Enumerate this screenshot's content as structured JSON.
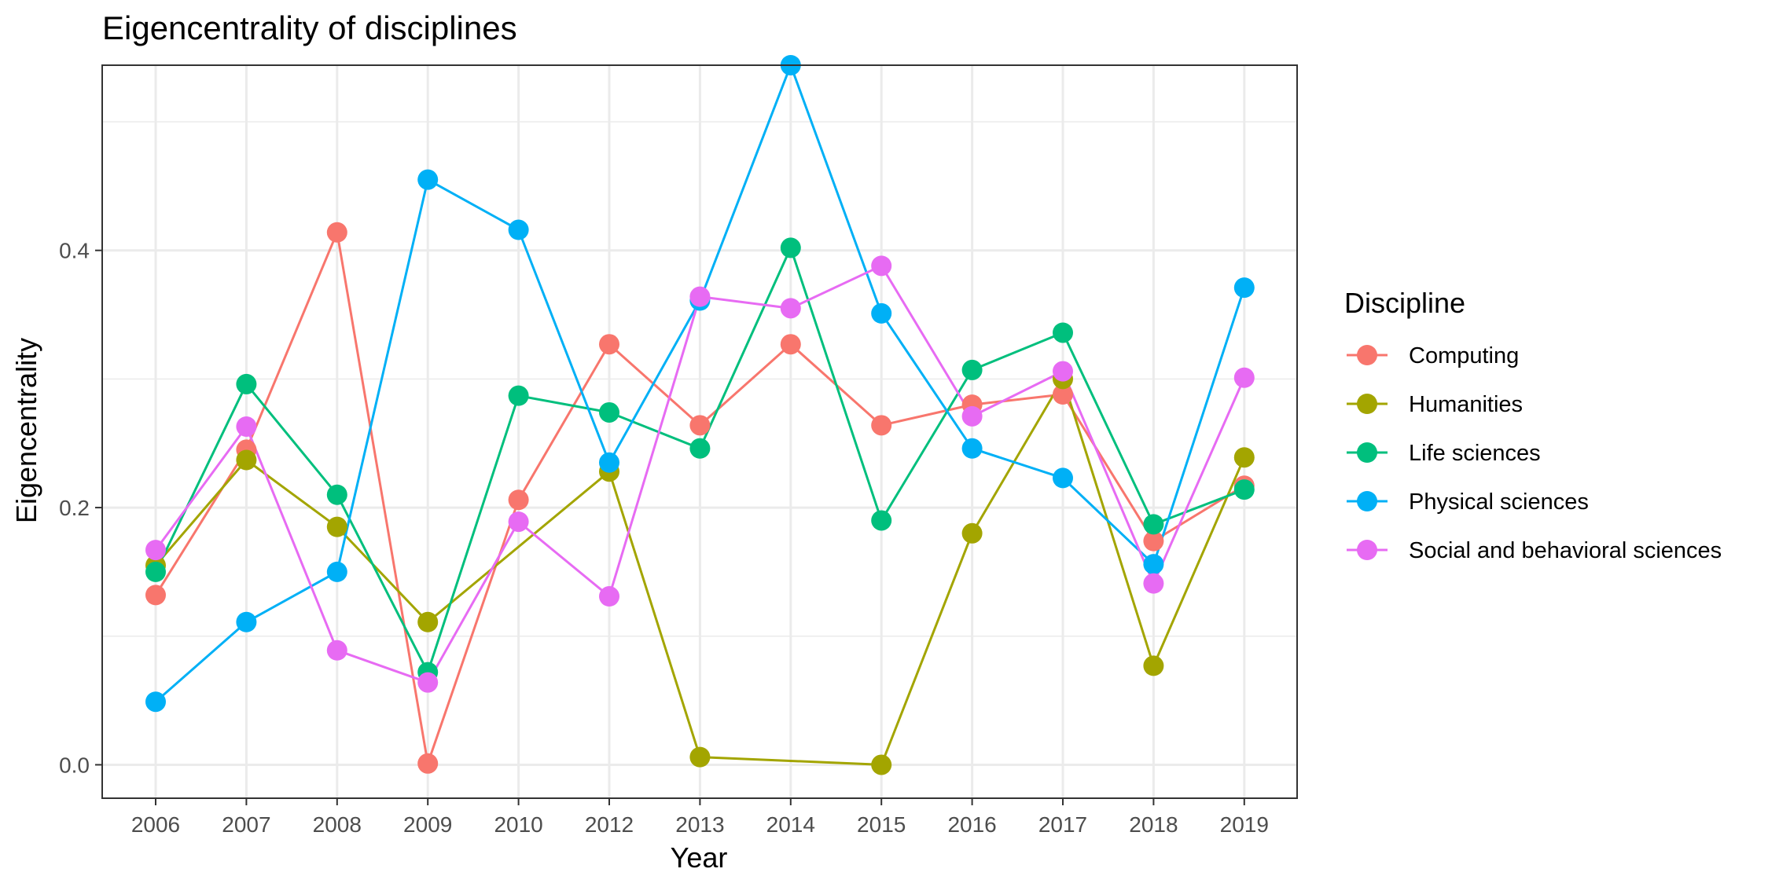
{
  "chart_data": {
    "type": "line",
    "title": "Eigencentrality of disciplines",
    "xlabel": "Year",
    "ylabel": "Eigencentrality",
    "categories": [
      "2006",
      "2007",
      "2008",
      "2009",
      "2010",
      "2012",
      "2013",
      "2014",
      "2015",
      "2016",
      "2017",
      "2018",
      "2019"
    ],
    "ylim": [
      -0.026,
      0.544
    ],
    "yticks": [
      0.0,
      0.2,
      0.4
    ],
    "ytick_labels": [
      "0.0",
      "0.2",
      "0.4"
    ],
    "grid": true,
    "legend": {
      "title": "Discipline",
      "position": "right"
    },
    "series": [
      {
        "name": "Computing",
        "color": "#F8766D",
        "values": [
          0.132,
          0.245,
          0.414,
          0.001,
          0.206,
          0.327,
          0.264,
          0.327,
          0.264,
          0.28,
          0.288,
          0.174,
          0.217
        ]
      },
      {
        "name": "Humanities",
        "color": "#A3A500",
        "values": [
          0.155,
          0.237,
          0.185,
          0.111,
          null,
          0.228,
          0.006,
          null,
          0.0,
          0.18,
          0.3,
          0.077,
          0.239
        ]
      },
      {
        "name": "Life sciences",
        "color": "#00BF7D",
        "values": [
          0.15,
          0.296,
          0.21,
          0.072,
          0.287,
          0.274,
          0.246,
          0.402,
          0.19,
          0.307,
          0.336,
          0.187,
          0.214
        ]
      },
      {
        "name": "Physical sciences",
        "color": "#00B0F6",
        "values": [
          0.049,
          0.111,
          0.15,
          0.455,
          0.416,
          0.235,
          0.361,
          0.544,
          0.351,
          0.246,
          0.223,
          0.156,
          0.371
        ]
      },
      {
        "name": "Social and behavioral sciences",
        "color": "#E76BF3",
        "values": [
          0.167,
          0.263,
          0.089,
          0.064,
          0.189,
          0.131,
          0.364,
          0.355,
          0.388,
          0.271,
          0.306,
          0.141,
          0.301
        ]
      }
    ]
  }
}
